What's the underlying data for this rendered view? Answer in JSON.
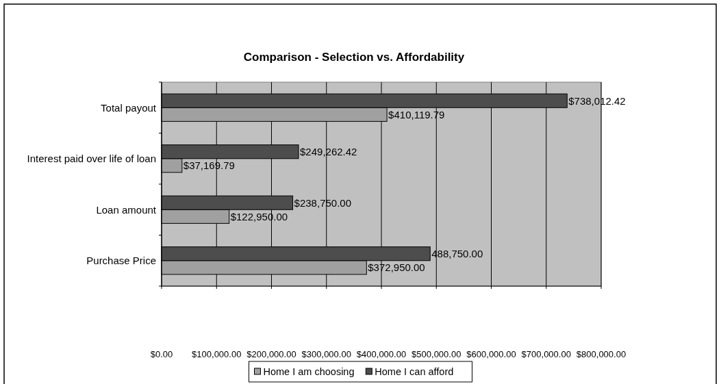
{
  "chart_data": {
    "type": "bar",
    "orientation": "horizontal",
    "title": "Comparison - Selection vs. Affordability",
    "categories": [
      "Total payout",
      "Interest paid over life of loan",
      "Loan amount",
      "Purchase Price"
    ],
    "series": [
      {
        "name": "Home I am choosing",
        "color": "#a0a0a0",
        "values": [
          410119.79,
          37169.79,
          122950,
          372950
        ],
        "value_labels": [
          "$410,119.79",
          "$37,169.79",
          "$122,950.00",
          "$372,950.00"
        ]
      },
      {
        "name": "Home I can afford",
        "color": "#4d4d4d",
        "values": [
          738012.42,
          249262.42,
          238750,
          488750
        ],
        "value_labels": [
          "$738,012.42",
          "$249,262.42",
          "$238,750.00",
          "488,750.00"
        ]
      }
    ],
    "xlim": [
      0,
      800000
    ],
    "xticks": [
      {
        "value": 0,
        "label": "$0.00"
      },
      {
        "value": 100000,
        "label": "$100,000.00"
      },
      {
        "value": 200000,
        "label": "$200,000.00"
      },
      {
        "value": 300000,
        "label": "$300,000.00"
      },
      {
        "value": 400000,
        "label": "$400,000.00"
      },
      {
        "value": 500000,
        "label": "$500,000.00"
      },
      {
        "value": 600000,
        "label": "$600,000.00"
      },
      {
        "value": 700000,
        "label": "$700,000.00"
      },
      {
        "value": 800000,
        "label": "$800,000.00"
      }
    ],
    "grid": "x",
    "legend": "bottom"
  }
}
